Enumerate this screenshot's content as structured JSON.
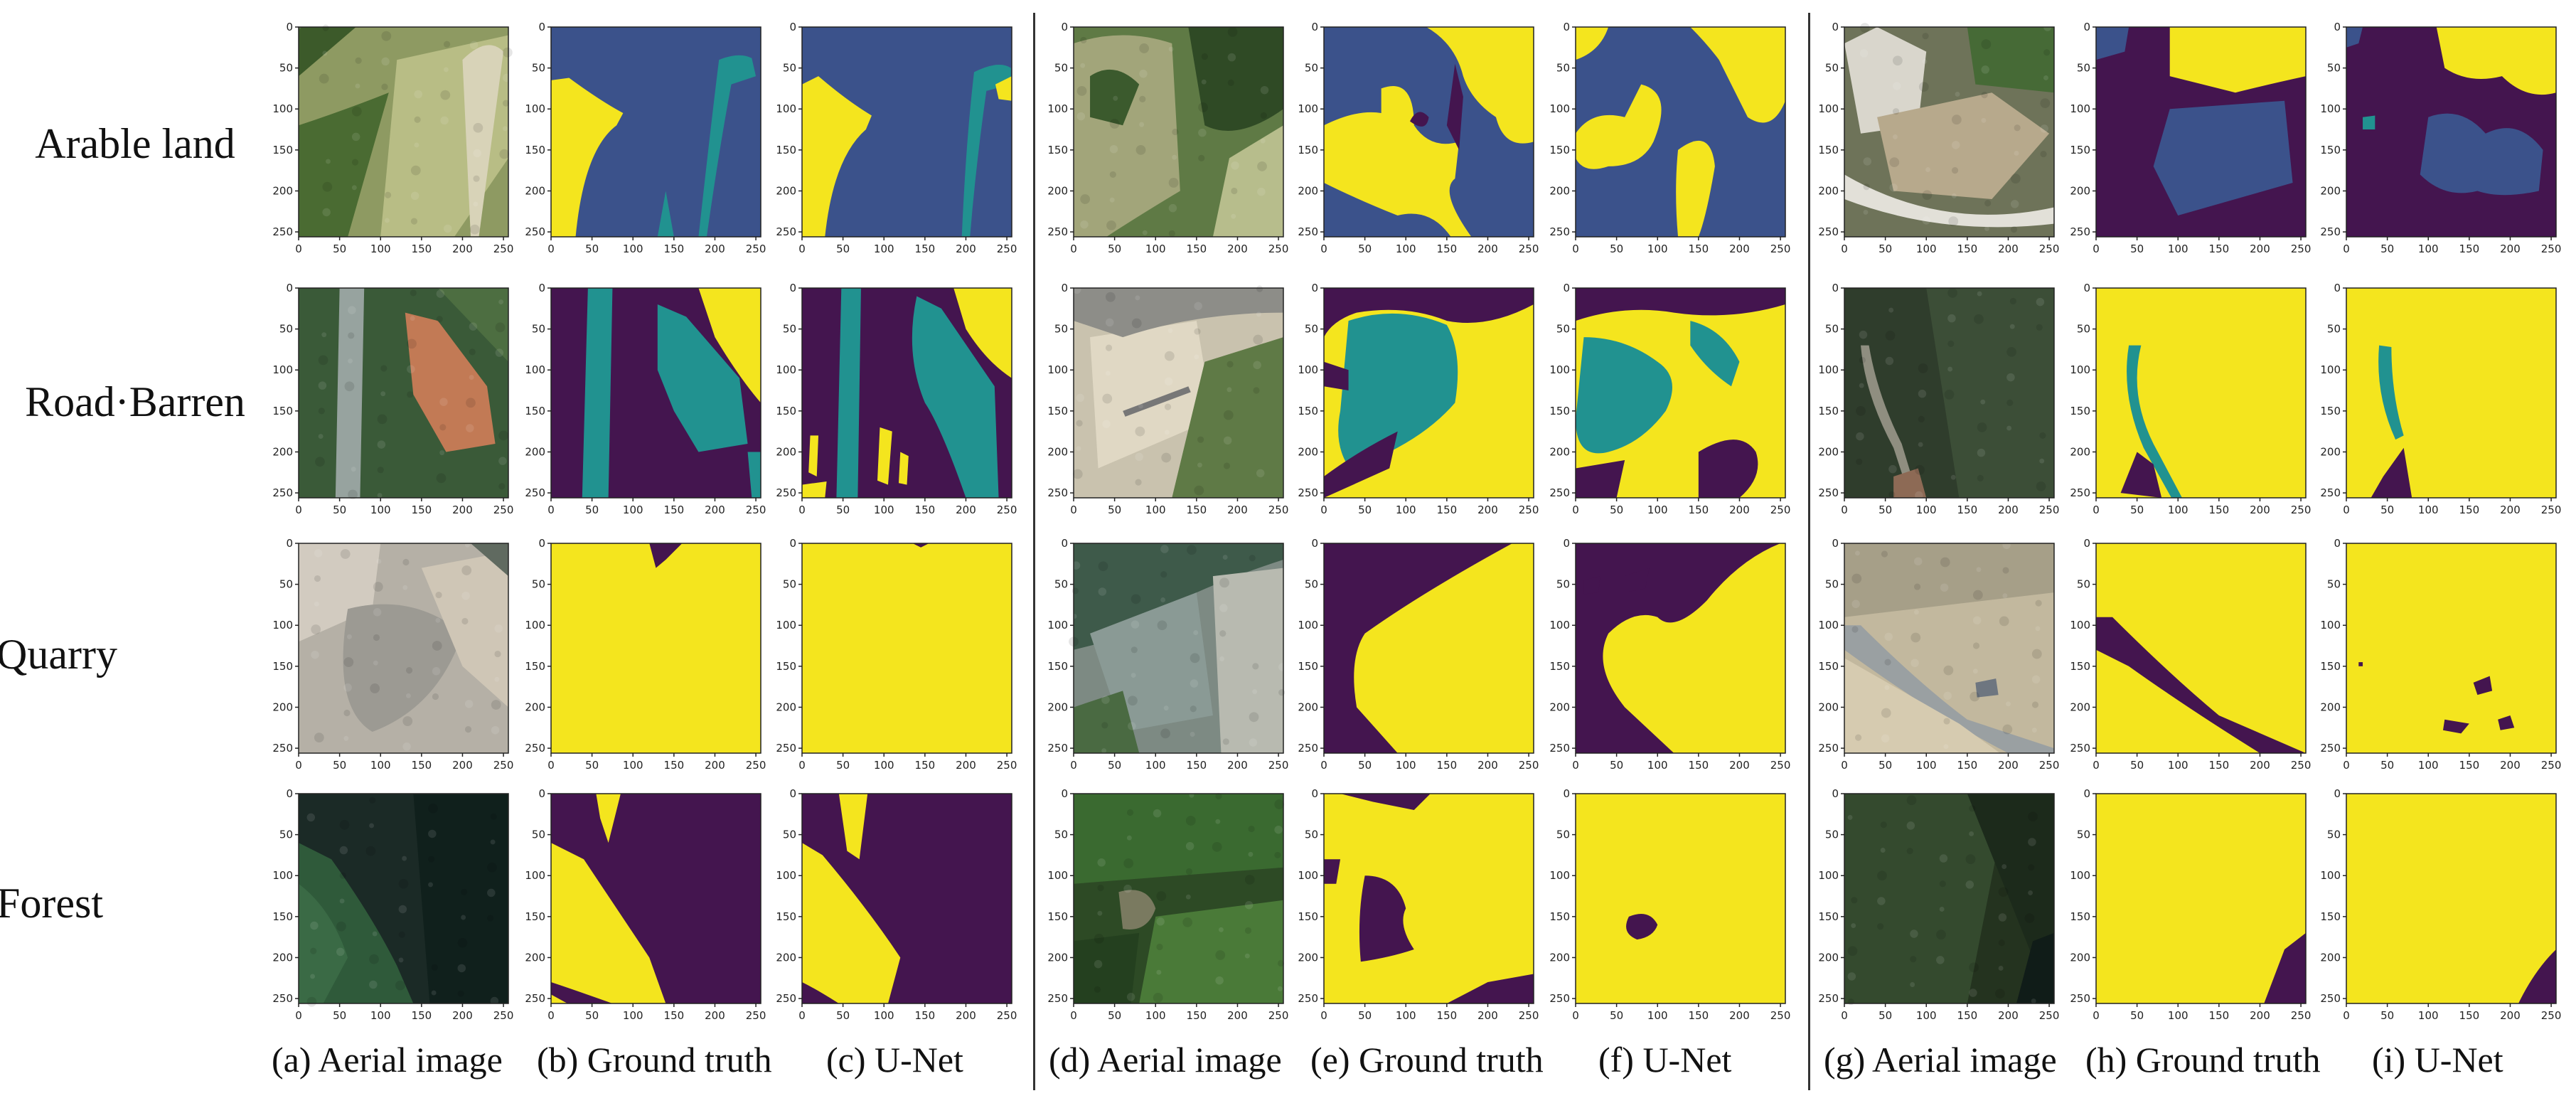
{
  "rows": [
    {
      "id": "arable",
      "label": "Arable land"
    },
    {
      "id": "road",
      "label": "Road·Barren"
    },
    {
      "id": "quarry",
      "label": "Quarry"
    },
    {
      "id": "forest",
      "label": "Forest"
    }
  ],
  "columns": [
    {
      "id": "a",
      "caption": "(a) Aerial image",
      "kind": "aerial"
    },
    {
      "id": "b",
      "caption": "(b) Ground truth",
      "kind": "mask"
    },
    {
      "id": "c",
      "caption": "(c) U-Net",
      "kind": "mask"
    },
    {
      "id": "d",
      "caption": "(d) Aerial image",
      "kind": "aerial"
    },
    {
      "id": "e",
      "caption": "(e) Ground truth",
      "kind": "mask"
    },
    {
      "id": "f",
      "caption": "(f) U-Net",
      "kind": "mask"
    },
    {
      "id": "g",
      "caption": "(g) Aerial image",
      "kind": "aerial"
    },
    {
      "id": "h",
      "caption": "(h) Ground truth",
      "kind": "mask"
    },
    {
      "id": "i",
      "caption": "(i) U-Net",
      "kind": "mask"
    }
  ],
  "axes": {
    "x_ticks": [
      "0",
      "50",
      "100",
      "150",
      "200",
      "250"
    ],
    "y_ticks": [
      "0",
      "50",
      "100",
      "150",
      "200",
      "250"
    ]
  },
  "colors": {
    "mask_yellow": "#f4e51e",
    "mask_purple": "#44154f",
    "mask_teal": "#219290",
    "mask_blue": "#3b528b"
  },
  "aerial_tones": {
    "arable_a": "#8e9a62",
    "arable_d": "#5f7a45",
    "arable_g": "#6e7359",
    "road_a": "#3a5a38",
    "road_d": "#c9c2ae",
    "road_g": "#2f3d2c",
    "quarry_a": "#b5b0a6",
    "quarry_d": "#7d8a83",
    "quarry_g": "#c2b89e",
    "forest_a": "#1b2a26",
    "forest_d": "#2d4a25",
    "forest_g": "#24331f"
  }
}
